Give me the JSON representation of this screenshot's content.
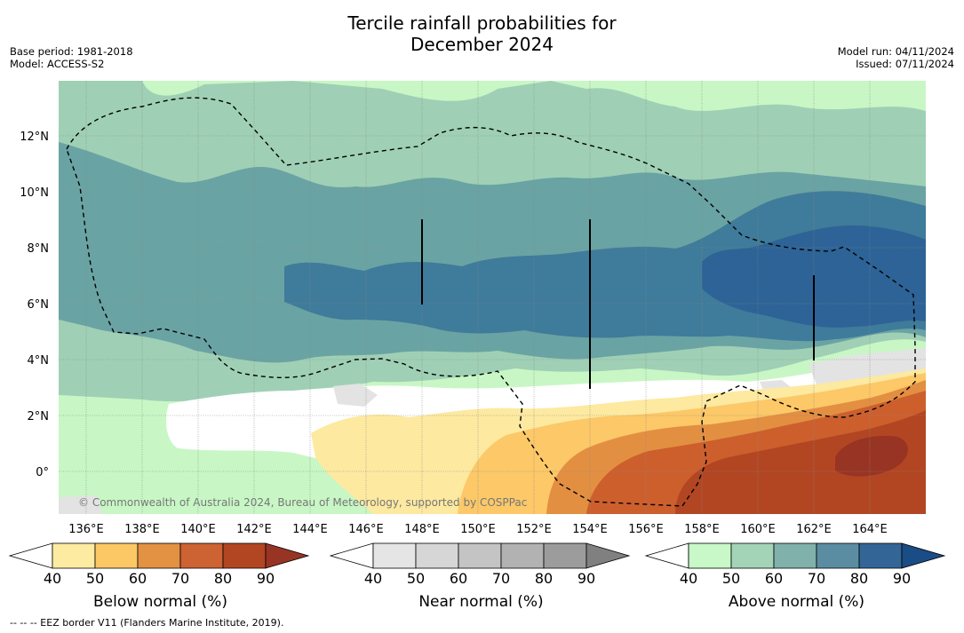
{
  "header": {
    "title_line1": "Tercile rainfall probabilities for",
    "title_line2": "December 2024",
    "base_period": "Base period: 1981-2018",
    "model": "Model: ACCESS-S2",
    "model_run": "Model run: 04/11/2024",
    "issued": "Issued: 07/11/2024"
  },
  "map": {
    "lon_labels": [
      "136°E",
      "138°E",
      "140°E",
      "142°E",
      "144°E",
      "146°E",
      "148°E",
      "150°E",
      "152°E",
      "154°E",
      "156°E",
      "158°E",
      "160°E",
      "162°E",
      "164°E"
    ],
    "lat_labels": [
      "12°N",
      "10°N",
      "8°N",
      "6°N",
      "4°N",
      "2°N",
      "0°"
    ],
    "copyright": "© Commonwealth of Australia 2024, Bureau of Meteorology, supported by COSPPac",
    "colors": {
      "ocean_light_green": "#c8f7c5",
      "mint": "#9fd0b5",
      "teal": "#6aa3a3",
      "steel": "#3f7b9a",
      "navy": "#2d6396",
      "white": "#ffffff",
      "grey": "#e3e3e3",
      "yellow": "#fde9a0",
      "light_orange": "#fcc868",
      "orange": "#e38f42",
      "dark_orange": "#cd5f2d",
      "brown": "#b24622",
      "dark_brown": "#983424"
    }
  },
  "colorbars": [
    {
      "name": "below",
      "label": "Below normal (%)",
      "ticks": [
        "40",
        "50",
        "60",
        "70",
        "80",
        "90"
      ],
      "colors": [
        "#ffffff",
        "#fdeba1",
        "#fcc865",
        "#e39142",
        "#cd6232",
        "#b24622",
        "#983424"
      ]
    },
    {
      "name": "near",
      "label": "Near normal (%)",
      "ticks": [
        "40",
        "50",
        "60",
        "70",
        "80",
        "90"
      ],
      "colors": [
        "#ffffff",
        "#e5e5e5",
        "#d6d6d6",
        "#c4c4c4",
        "#b2b2b2",
        "#9c9c9c",
        "#808080"
      ]
    },
    {
      "name": "above",
      "label": "Above normal (%)",
      "ticks": [
        "40",
        "50",
        "60",
        "70",
        "80",
        "90"
      ],
      "colors": [
        "#ffffff",
        "#c8f7c8",
        "#a3d4b8",
        "#80b1aa",
        "#5a8da1",
        "#336696",
        "#1a4c86"
      ]
    }
  ],
  "footer": {
    "eez_note": "--  --  -- EEZ border V11 (Flanders Marine Institute, 2019)."
  }
}
